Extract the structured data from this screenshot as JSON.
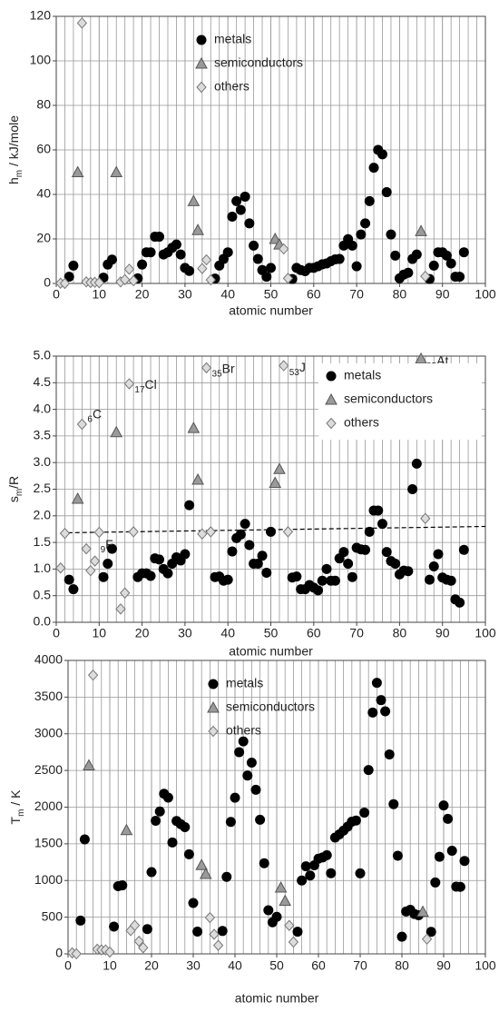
{
  "chart_data": [
    {
      "type": "scatter",
      "xlabel": "atomic number",
      "ylabel": [
        "h",
        "m",
        " / kJ/mole"
      ],
      "xlim": [
        0,
        100
      ],
      "xticks": [
        0,
        10,
        20,
        30,
        40,
        50,
        60,
        70,
        80,
        90,
        100
      ],
      "minor_grid_step": 2,
      "ylim": [
        0,
        120
      ],
      "yticks": [
        0,
        20,
        40,
        60,
        80,
        100,
        120
      ],
      "grid": true,
      "legend_position": "top-center",
      "series": [
        {
          "name": "metals",
          "color": "#000000",
          "marker": "circle",
          "x": [
            3,
            4,
            11,
            12,
            13,
            19,
            20,
            21,
            22,
            23,
            24,
            25,
            26,
            27,
            28,
            29,
            30,
            31,
            37,
            38,
            39,
            40,
            41,
            42,
            43,
            44,
            45,
            46,
            47,
            48,
            49,
            50,
            55,
            56,
            57,
            58,
            59,
            60,
            61,
            62,
            63,
            64,
            65,
            66,
            67,
            68,
            69,
            70,
            71,
            72,
            73,
            74,
            75,
            76,
            77,
            78,
            79,
            80,
            81,
            82,
            83,
            84,
            87,
            88,
            89,
            90,
            91,
            92,
            93,
            94,
            95
          ],
          "values": [
            3,
            8,
            2.6,
            8.5,
            10.7,
            2.3,
            8.5,
            14,
            14,
            21,
            21,
            13,
            14,
            16,
            17.5,
            13,
            7,
            5.6,
            2.2,
            8,
            11,
            14,
            30,
            37,
            33,
            39,
            27,
            17,
            11,
            6,
            3,
            7,
            2,
            7,
            6,
            5.5,
            7,
            7,
            7.7,
            8.6,
            9,
            10,
            10.8,
            11,
            17,
            19.9,
            17,
            7.7,
            22,
            27,
            37,
            52,
            60,
            58,
            41,
            22,
            12.5,
            2.3,
            4,
            4.8,
            11,
            13,
            2,
            8,
            14,
            14,
            12.5,
            9,
            3,
            3,
            14
          ]
        },
        {
          "name": "semiconductors",
          "color": "#9a9a9a",
          "marker": "triangle",
          "x": [
            5,
            14,
            32,
            33,
            51,
            52,
            85
          ],
          "values": [
            50,
            50,
            37,
            24,
            20,
            17.5,
            23.5
          ]
        },
        {
          "name": "others",
          "color": "#dcdcdc",
          "marker": "diamond",
          "x": [
            1,
            2,
            6,
            7,
            8,
            9,
            10,
            15,
            16,
            17,
            18,
            34,
            35,
            36,
            53,
            54,
            86
          ],
          "values": [
            0.1,
            0,
            117,
            0.7,
            0.4,
            0.5,
            0.3,
            0.7,
            1.7,
            6.4,
            1.2,
            6.7,
            10.6,
            1.6,
            15.5,
            2.3,
            3.2
          ]
        }
      ]
    },
    {
      "type": "scatter",
      "xlabel": "atomic number",
      "ylabel": [
        "s",
        "m",
        "/R"
      ],
      "xlim": [
        0,
        100
      ],
      "xticks": [
        0,
        10,
        20,
        30,
        40,
        50,
        60,
        70,
        80,
        90,
        100
      ],
      "minor_grid_step": 2,
      "ylim": [
        0,
        5
      ],
      "yticks": [
        {
          "value": 0,
          "label": "0.0"
        },
        0.5,
        {
          "value": 1,
          "label": "1.0"
        },
        1.5,
        {
          "value": 2,
          "label": "2.0"
        },
        2.5,
        {
          "value": 3,
          "label": "3.0"
        },
        3.5,
        {
          "value": 4,
          "label": "4.0"
        },
        4.5,
        {
          "value": 5,
          "label": "5.0"
        }
      ],
      "grid": true,
      "legend_position": "top-right",
      "reference_line": {
        "x": [
          1,
          100
        ],
        "y": [
          1.68,
          1.8
        ]
      },
      "annotations": [
        {
          "sub": "6",
          "text": "C",
          "x": 6,
          "y": 3.9
        },
        {
          "sub": "9",
          "text": "F",
          "x": 9,
          "y": 1.45
        },
        {
          "sub": "17",
          "text": "Cl",
          "x": 17,
          "y": 4.45
        },
        {
          "sub": "35",
          "text": "Br",
          "x": 35,
          "y": 4.75
        },
        {
          "sub": "53",
          "text": "J",
          "x": 53,
          "y": 4.78
        },
        {
          "sub": "85",
          "text": "At",
          "x": 85,
          "y": 4.9
        }
      ],
      "series": [
        {
          "name": "metals",
          "color": "#000000",
          "marker": "circle",
          "x": [
            3,
            4,
            11,
            12,
            13,
            19,
            20,
            21,
            22,
            23,
            24,
            25,
            26,
            27,
            28,
            29,
            30,
            31,
            37,
            38,
            39,
            40,
            41,
            42,
            43,
            44,
            45,
            46,
            47,
            48,
            49,
            50,
            55,
            56,
            57,
            58,
            59,
            60,
            61,
            62,
            63,
            64,
            65,
            66,
            67,
            68,
            69,
            70,
            71,
            72,
            73,
            74,
            75,
            76,
            77,
            78,
            79,
            80,
            81,
            82,
            83,
            84,
            87,
            88,
            89,
            90,
            91,
            92,
            93,
            94,
            95
          ],
          "values": [
            0.8,
            0.62,
            0.85,
            1.1,
            1.38,
            0.85,
            0.92,
            0.92,
            0.87,
            1.2,
            1.18,
            1.0,
            0.92,
            1.1,
            1.22,
            1.16,
            1.28,
            2.2,
            0.85,
            0.86,
            0.78,
            0.8,
            1.33,
            1.58,
            1.65,
            1.85,
            1.45,
            1.1,
            1.1,
            1.25,
            0.93,
            1.7,
            0.84,
            0.86,
            0.62,
            0.62,
            0.7,
            0.65,
            0.6,
            0.78,
            1.0,
            0.78,
            0.78,
            1.2,
            1.32,
            1.1,
            0.85,
            1.4,
            1.37,
            1.36,
            1.7,
            2.1,
            2.1,
            1.85,
            1.32,
            1.15,
            1.1,
            0.9,
            0.97,
            0.96,
            2.5,
            2.98,
            0.8,
            1.05,
            1.28,
            0.84,
            0.8,
            0.78,
            0.43,
            0.37,
            1.36
          ]
        },
        {
          "name": "semiconductors",
          "color": "#9a9a9a",
          "marker": "triangle",
          "x": [
            5,
            14,
            32,
            33,
            51,
            52,
            85
          ],
          "values": [
            2.32,
            3.57,
            3.65,
            2.68,
            2.62,
            2.88,
            4.95
          ]
        },
        {
          "name": "others",
          "color": "#dcdcdc",
          "marker": "diamond",
          "x": [
            1,
            2,
            6,
            7,
            8,
            9,
            10,
            15,
            16,
            17,
            18,
            34,
            35,
            36,
            53,
            54,
            86
          ],
          "values": [
            1.02,
            1.67,
            3.72,
            1.38,
            0.97,
            1.15,
            1.69,
            0.25,
            0.55,
            4.48,
            1.7,
            1.66,
            4.78,
            1.7,
            4.82,
            1.7,
            1.95
          ]
        }
      ]
    },
    {
      "type": "scatter",
      "xlabel": "atomic number",
      "ylabel": [
        "T",
        "m",
        " / K"
      ],
      "xlim": [
        0,
        100
      ],
      "xticks": [
        0,
        10,
        20,
        30,
        40,
        50,
        60,
        70,
        80,
        90,
        100
      ],
      "minor_grid_step": 2,
      "ylim": [
        0,
        4000
      ],
      "yticks": [
        0,
        500,
        1000,
        1500,
        2000,
        2500,
        3000,
        3500,
        4000
      ],
      "grid": true,
      "legend_position": "top-center",
      "series": [
        {
          "name": "metals",
          "color": "#000000",
          "marker": "circle",
          "x": [
            3,
            4,
            11,
            12,
            13,
            19,
            20,
            21,
            22,
            23,
            24,
            25,
            26,
            27,
            28,
            29,
            30,
            31,
            37,
            38,
            39,
            40,
            41,
            42,
            43,
            44,
            45,
            46,
            47,
            48,
            49,
            50,
            55,
            56,
            57,
            58,
            59,
            60,
            61,
            62,
            63,
            64,
            65,
            66,
            67,
            68,
            69,
            70,
            71,
            72,
            73,
            74,
            75,
            76,
            77,
            78,
            79,
            80,
            81,
            82,
            83,
            84,
            87,
            88,
            89,
            90,
            91,
            92,
            93,
            94,
            95
          ],
          "values": [
            454,
            1560,
            371,
            923,
            933,
            337,
            1115,
            1814,
            1941,
            2183,
            2130,
            1519,
            1811,
            1768,
            1728,
            1358,
            693,
            303,
            312,
            1050,
            1799,
            2128,
            2750,
            2896,
            2430,
            2607,
            2237,
            1828,
            1235,
            594,
            430,
            505,
            302,
            1000,
            1193,
            1068,
            1208,
            1297,
            1315,
            1345,
            1099,
            1585,
            1629,
            1680,
            1734,
            1802,
            1818,
            1097,
            1925,
            2506,
            3290,
            3695,
            3459,
            3306,
            2719,
            2041,
            1337,
            234,
            577,
            601,
            544,
            527,
            300,
            973,
            1323,
            2023,
            1841,
            1405,
            917,
            913,
            1267
          ]
        },
        {
          "name": "semiconductors",
          "color": "#9a9a9a",
          "marker": "triangle",
          "x": [
            5,
            14,
            32,
            33,
            51,
            52,
            85
          ],
          "values": [
            2570,
            1687,
            1211,
            1090,
            904,
            723,
            575
          ]
        },
        {
          "name": "others",
          "color": "#dcdcdc",
          "marker": "diamond",
          "x": [
            1,
            2,
            6,
            7,
            8,
            9,
            10,
            15,
            16,
            17,
            18,
            34,
            35,
            36,
            53,
            54,
            86
          ],
          "values": [
            14,
            1,
            3800,
            63,
            54,
            53,
            25,
            317,
            388,
            172,
            84,
            494,
            266,
            116,
            387,
            161,
            202
          ]
        }
      ]
    }
  ]
}
